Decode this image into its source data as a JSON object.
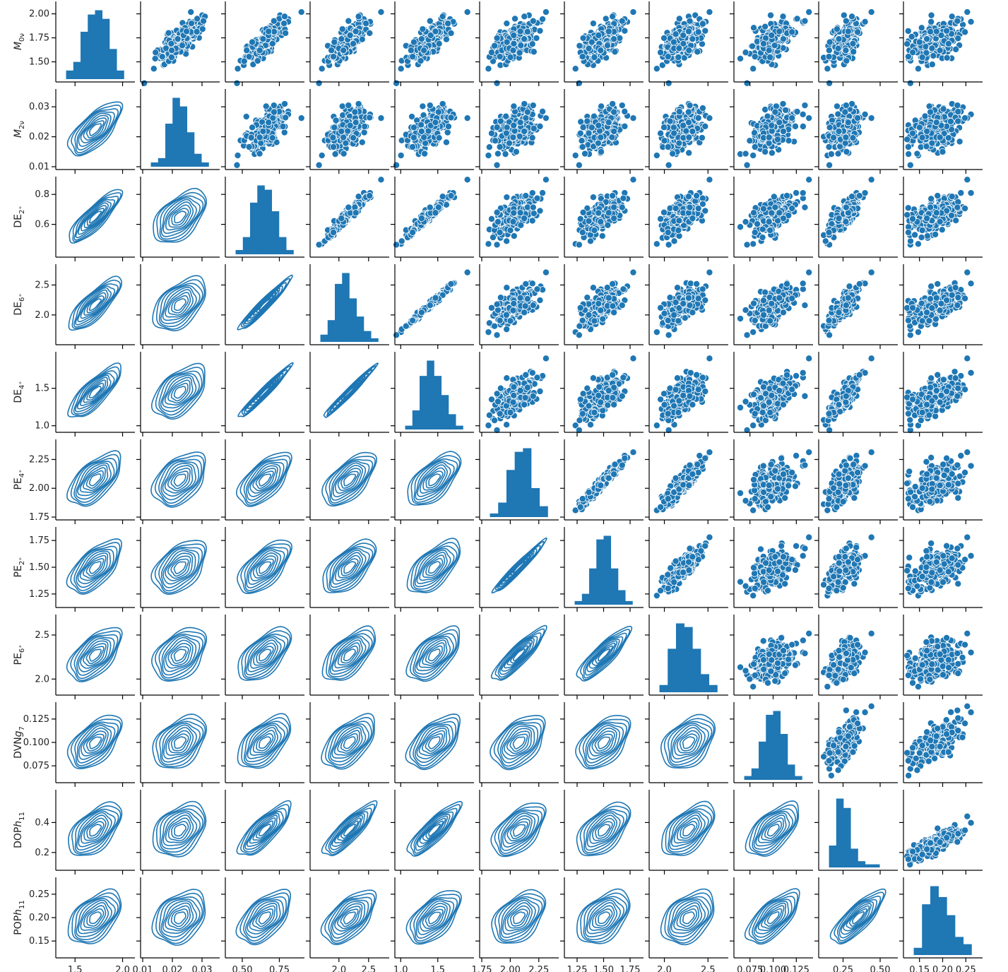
{
  "chart_data": {
    "type": "pairplot",
    "upper": "scatter",
    "lower": "kde",
    "diagonal": "histogram",
    "color": "#1f77b4",
    "n_points": 250,
    "variables": [
      {
        "key": "M0v",
        "label": "M",
        "sub": "0ν",
        "italic": true,
        "mean": 1.72,
        "sd": 0.11,
        "range": [
          1.32,
          2.1
        ],
        "ticks": [
          1.5,
          2.0
        ],
        "tick_labels": [
          "1.5",
          "2.0"
        ],
        "ytick_labels": [
          "1.50",
          "1.75",
          "2.00"
        ],
        "yticks": [
          1.5,
          1.75,
          2.0
        ],
        "hist": [
          2,
          4,
          11,
          15,
          16,
          14,
          7,
          2
        ]
      },
      {
        "key": "M2v",
        "label": "M",
        "sub": "2ν",
        "italic": true,
        "mean": 0.0225,
        "sd": 0.0035,
        "range": [
          0.01,
          0.035
        ],
        "ticks": [
          0.01,
          0.02,
          0.03
        ],
        "tick_labels": [
          "0.01",
          "0.02",
          "0.03"
        ],
        "ytick_labels": [
          "0.01",
          "0.02",
          "0.03"
        ],
        "yticks": [
          0.01,
          0.02,
          0.03
        ],
        "hist": [
          1,
          2,
          10,
          16,
          14,
          8,
          3,
          1
        ]
      },
      {
        "key": "DE2",
        "label": "DE",
        "sub": "2⁺",
        "italic": false,
        "mean": 0.66,
        "sd": 0.065,
        "range": [
          0.4,
          0.9
        ],
        "ticks": [
          0.5,
          0.75
        ],
        "tick_labels": [
          "0.50",
          "0.75"
        ],
        "ytick_labels": [
          "0.6",
          "0.8"
        ],
        "yticks": [
          0.6,
          0.8
        ],
        "hist": [
          1,
          4,
          12,
          16,
          15,
          10,
          4,
          1
        ]
      },
      {
        "key": "DE6",
        "label": "DE",
        "sub": "6⁺",
        "italic": false,
        "mean": 2.15,
        "sd": 0.16,
        "range": [
          1.55,
          2.8
        ],
        "ticks": [
          2.0,
          2.5
        ],
        "tick_labels": [
          "2.0",
          "2.5"
        ],
        "ytick_labels": [
          "2.0",
          "2.5"
        ],
        "yticks": [
          2.0,
          2.5
        ],
        "hist": [
          2,
          6,
          16,
          19,
          12,
          7,
          3,
          1
        ]
      },
      {
        "key": "DE4",
        "label": "DE",
        "sub": "4⁺",
        "italic": false,
        "mean": 1.38,
        "sd": 0.14,
        "range": [
          0.95,
          1.95
        ],
        "ticks": [
          1.0,
          1.5
        ],
        "tick_labels": [
          "1.0",
          "1.5"
        ],
        "ytick_labels": [
          "1.0",
          "1.5"
        ],
        "yticks": [
          1.0,
          1.5
        ],
        "hist": [
          1,
          5,
          14,
          18,
          14,
          9,
          4,
          1
        ]
      },
      {
        "key": "PE4",
        "label": "PE",
        "sub": "4⁺",
        "italic": false,
        "mean": 2.04,
        "sd": 0.09,
        "range": [
          1.75,
          2.4
        ],
        "ticks": [
          1.75,
          2.0,
          2.25
        ],
        "tick_labels": [
          "1.75",
          "2.00",
          "2.25"
        ],
        "ytick_labels": [
          "1.75",
          "2.00",
          "2.25"
        ],
        "yticks": [
          1.75,
          2.0,
          2.25
        ],
        "hist": [
          1,
          4,
          13,
          18,
          19,
          8,
          3
        ]
      },
      {
        "key": "PE2",
        "label": "PE",
        "sub": "2⁺",
        "italic": false,
        "mean": 1.48,
        "sd": 0.09,
        "range": [
          1.15,
          1.85
        ],
        "ticks": [
          1.25,
          1.5,
          1.75
        ],
        "tick_labels": [
          "1.25",
          "1.50",
          "1.75"
        ],
        "ytick_labels": [
          "1.25",
          "1.50",
          "1.75"
        ],
        "yticks": [
          1.25,
          1.5,
          1.75
        ],
        "hist": [
          1,
          3,
          10,
          18,
          19,
          10,
          4,
          1
        ]
      },
      {
        "key": "PE6",
        "label": "PE",
        "sub": "6⁺",
        "italic": false,
        "mean": 2.2,
        "sd": 0.11,
        "range": [
          1.85,
          2.7
        ],
        "ticks": [
          2.0,
          2.5
        ],
        "tick_labels": [
          "2.0",
          "2.5"
        ],
        "ytick_labels": [
          "2.0",
          "2.5"
        ],
        "yticks": [
          2.0,
          2.5
        ],
        "hist": [
          2,
          12,
          19,
          18,
          12,
          5,
          2
        ]
      },
      {
        "key": "DVNg7",
        "label": "DVN",
        "sub": "7",
        "italic": false,
        "italic_letter": "g",
        "mean": 0.1,
        "sd": 0.011,
        "range": [
          0.06,
          0.14
        ],
        "ticks": [
          0.075,
          0.1,
          0.125
        ],
        "tick_labels": [
          "0.075",
          "0.100",
          "0.125"
        ],
        "ytick_labels": [
          "0.075",
          "0.100",
          "0.125"
        ],
        "yticks": [
          0.075,
          0.1,
          0.125
        ],
        "hist": [
          1,
          3,
          10,
          17,
          18,
          12,
          4,
          1
        ]
      },
      {
        "key": "DOPh11",
        "label": "DOP",
        "sub": "11",
        "italic": false,
        "italic_letter": "h",
        "mean": 0.26,
        "sd": 0.05,
        "range": [
          0.1,
          0.6
        ],
        "ticks": [
          0.25,
          0.5
        ],
        "tick_labels": [
          "0.25",
          "0.50"
        ],
        "ytick_labels": [
          "0.2",
          "0.4"
        ],
        "yticks": [
          0.2,
          0.4
        ],
        "hist": [
          7,
          22,
          19,
          6,
          2,
          1,
          1,
          0
        ]
      },
      {
        "key": "POPh11",
        "label": "POP",
        "sub": "11",
        "italic": false,
        "italic_letter": "h",
        "mean": 0.185,
        "sd": 0.025,
        "range": [
          0.12,
          0.28
        ],
        "ticks": [
          0.15,
          0.2,
          0.25
        ],
        "tick_labels": [
          "0.15",
          "0.20",
          "0.25"
        ],
        "ytick_labels": [
          "0.15",
          "0.20",
          "0.25"
        ],
        "yticks": [
          0.15,
          0.2,
          0.25
        ],
        "hist": [
          2,
          14,
          19,
          16,
          11,
          5,
          3
        ]
      }
    ],
    "correlation": [
      [
        1.0,
        0.7,
        0.85,
        0.8,
        0.8,
        0.6,
        0.62,
        0.58,
        0.55,
        0.55,
        0.48
      ],
      [
        0.7,
        1.0,
        0.52,
        0.5,
        0.5,
        0.42,
        0.45,
        0.4,
        0.4,
        0.35,
        0.32
      ],
      [
        0.85,
        0.52,
        1.0,
        0.96,
        0.97,
        0.62,
        0.62,
        0.6,
        0.55,
        0.8,
        0.55
      ],
      [
        0.8,
        0.5,
        0.96,
        1.0,
        0.99,
        0.62,
        0.62,
        0.62,
        0.55,
        0.85,
        0.58
      ],
      [
        0.8,
        0.5,
        0.97,
        0.99,
        1.0,
        0.62,
        0.62,
        0.6,
        0.55,
        0.85,
        0.58
      ],
      [
        0.6,
        0.42,
        0.62,
        0.62,
        0.62,
        1.0,
        0.97,
        0.88,
        0.45,
        0.55,
        0.45
      ],
      [
        0.62,
        0.45,
        0.62,
        0.62,
        0.62,
        0.97,
        1.0,
        0.86,
        0.5,
        0.55,
        0.45
      ],
      [
        0.58,
        0.4,
        0.6,
        0.62,
        0.6,
        0.88,
        0.86,
        1.0,
        0.4,
        0.55,
        0.4
      ],
      [
        0.55,
        0.4,
        0.55,
        0.55,
        0.55,
        0.45,
        0.5,
        0.4,
        1.0,
        0.6,
        0.68
      ],
      [
        0.55,
        0.35,
        0.8,
        0.85,
        0.85,
        0.55,
        0.55,
        0.55,
        0.6,
        1.0,
        0.8
      ],
      [
        0.48,
        0.32,
        0.55,
        0.58,
        0.58,
        0.45,
        0.45,
        0.4,
        0.68,
        0.8,
        1.0
      ]
    ]
  }
}
